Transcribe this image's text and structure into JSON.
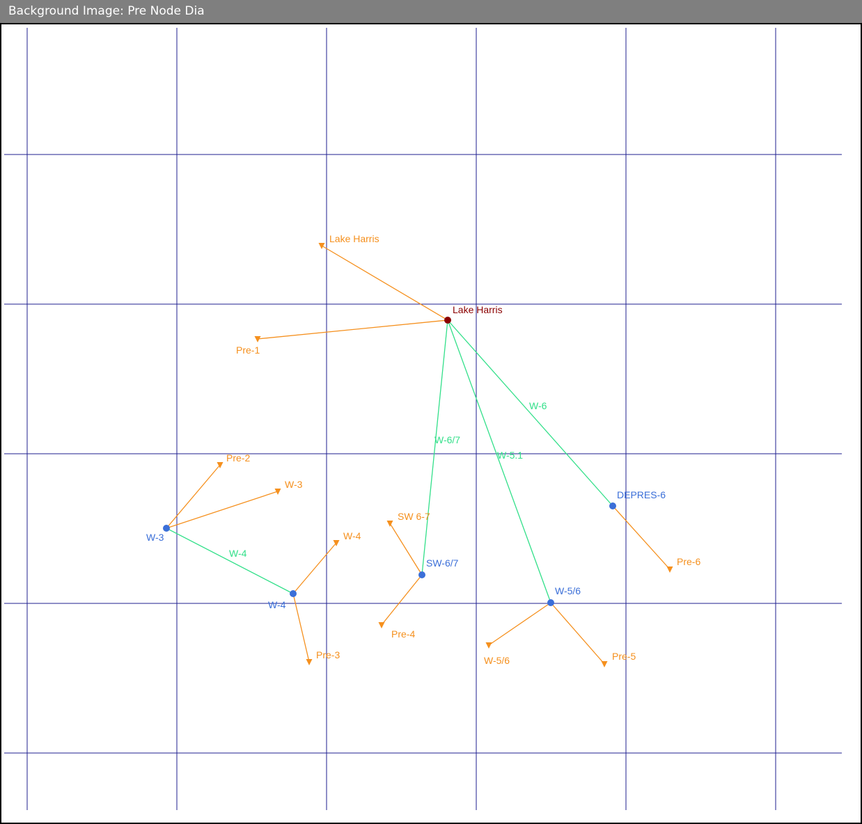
{
  "window": {
    "title": "Background Image: Pre Node Dia"
  },
  "colors": {
    "grid": "#1f1f8f",
    "link_green": "#33e08a",
    "link_orange": "#f5901e",
    "node_blue": "#3b6fd8",
    "node_dark": "#8b0000",
    "label_blue": "#3b6fd8",
    "label_orange": "#f5901e",
    "label_green": "#33e08a",
    "label_dark": "#8b0000"
  },
  "nodes": [
    {
      "id": "lake-harris",
      "label": "Lake Harris",
      "kind": "junction-dark"
    },
    {
      "id": "depres-6",
      "label": "DEPRES-6",
      "kind": "junction"
    },
    {
      "id": "w-3",
      "label": "W-3",
      "kind": "junction"
    },
    {
      "id": "w-4",
      "label": "W-4",
      "kind": "junction"
    },
    {
      "id": "sw-6-7",
      "label": "SW-6/7",
      "kind": "junction"
    },
    {
      "id": "w-5-6",
      "label": "W-5/6",
      "kind": "junction"
    }
  ],
  "outfalls": [
    {
      "id": "of-lake-harris",
      "label": "Lake Harris"
    },
    {
      "id": "of-pre-1",
      "label": "Pre-1"
    },
    {
      "id": "of-pre-2",
      "label": "Pre-2"
    },
    {
      "id": "of-w-3",
      "label": "W-3"
    },
    {
      "id": "of-w-4",
      "label": "W-4"
    },
    {
      "id": "of-pre-3",
      "label": "Pre-3"
    },
    {
      "id": "of-sw-6-7",
      "label": "SW 6-7"
    },
    {
      "id": "of-pre-4",
      "label": "Pre-4"
    },
    {
      "id": "of-w-5-6",
      "label": "W-5/6"
    },
    {
      "id": "of-pre-5",
      "label": "Pre-5"
    },
    {
      "id": "of-pre-6",
      "label": "Pre-6"
    }
  ],
  "links": [
    {
      "id": "link-w-6",
      "label": "W-6",
      "from": "lake-harris",
      "to": "depres-6"
    },
    {
      "id": "link-w-6-7",
      "label": "W-6/7",
      "from": "lake-harris",
      "to": "sw-6-7"
    },
    {
      "id": "link-w-5-1",
      "label": "W-5.1",
      "from": "lake-harris",
      "to": "w-5-6"
    },
    {
      "id": "link-w-4",
      "label": "W-4",
      "from": "w-3",
      "to": "w-4"
    }
  ],
  "drains": [
    {
      "from": "lake-harris",
      "to": "of-lake-harris"
    },
    {
      "from": "lake-harris",
      "to": "of-pre-1"
    },
    {
      "from": "w-3",
      "to": "of-pre-2"
    },
    {
      "from": "w-3",
      "to": "of-w-3"
    },
    {
      "from": "w-4",
      "to": "of-w-4"
    },
    {
      "from": "w-4",
      "to": "of-pre-3"
    },
    {
      "from": "sw-6-7",
      "to": "of-sw-6-7"
    },
    {
      "from": "sw-6-7",
      "to": "of-pre-4"
    },
    {
      "from": "w-5-6",
      "to": "of-w-5-6"
    },
    {
      "from": "w-5-6",
      "to": "of-pre-5"
    },
    {
      "from": "depres-6",
      "to": "of-pre-6"
    }
  ]
}
